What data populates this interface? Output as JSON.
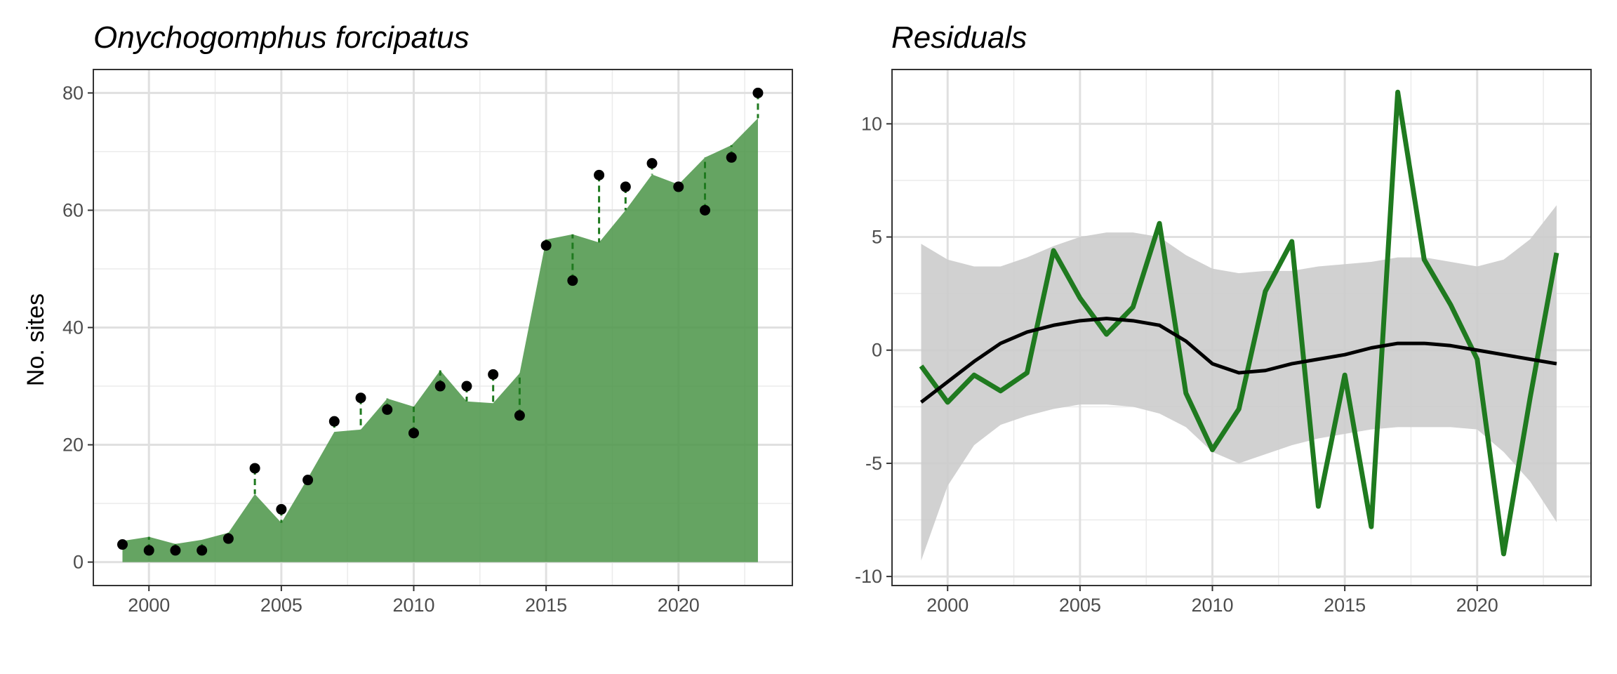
{
  "chart_data": [
    {
      "type": "area",
      "title": "Onychogomphus forcipatus",
      "xlabel": "",
      "ylabel": "No. sites",
      "xlim": [
        1997.9,
        2024.3
      ],
      "ylim": [
        -4,
        84
      ],
      "x_ticks": [
        2000,
        2005,
        2010,
        2015,
        2020
      ],
      "y_ticks": [
        0,
        20,
        40,
        60,
        80
      ],
      "grid": true,
      "colors": {
        "fill": "#4a9446",
        "points": "#000000",
        "segments": "#1f7a1f"
      },
      "x": [
        1999,
        2000,
        2001,
        2002,
        2003,
        2004,
        2005,
        2006,
        2007,
        2008,
        2009,
        2010,
        2011,
        2012,
        2013,
        2014,
        2015,
        2016,
        2017,
        2018,
        2019,
        2020,
        2021,
        2022,
        2023
      ],
      "series": [
        {
          "role": "fitted",
          "values": [
            3.6,
            4.3,
            3.1,
            3.8,
            5.0,
            11.6,
            6.7,
            14.3,
            22.2,
            22.6,
            27.9,
            26.5,
            32.7,
            27.4,
            27.1,
            32.2,
            55.0,
            55.9,
            54.5,
            60.0,
            66.1,
            64.4,
            69.0,
            71.1,
            75.7
          ]
        },
        {
          "role": "observed",
          "values": [
            3,
            2,
            2,
            2,
            4,
            16,
            9,
            14,
            24,
            28,
            26,
            22,
            30,
            30,
            32,
            25,
            54,
            48,
            66,
            64,
            68,
            64,
            60,
            69,
            80
          ]
        }
      ]
    },
    {
      "type": "line",
      "title": "Residuals",
      "xlabel": "",
      "ylabel": "",
      "xlim": [
        1997.9,
        2024.3
      ],
      "ylim": [
        -10.4,
        12.4
      ],
      "x_ticks": [
        2000,
        2005,
        2010,
        2015,
        2020
      ],
      "y_ticks": [
        -10,
        -5,
        0,
        5,
        10
      ],
      "grid": true,
      "colors": {
        "residual": "#1f7a1f",
        "smooth": "#000000",
        "ribbon": "#cccccc"
      },
      "x": [
        1999,
        2000,
        2001,
        2002,
        2003,
        2004,
        2005,
        2006,
        2007,
        2008,
        2009,
        2010,
        2011,
        2012,
        2013,
        2014,
        2015,
        2016,
        2017,
        2018,
        2019,
        2020,
        2021,
        2022,
        2023
      ],
      "series": [
        {
          "role": "residuals",
          "values": [
            -0.7,
            -2.3,
            -1.1,
            -1.8,
            -1.0,
            4.4,
            2.3,
            0.7,
            1.9,
            5.6,
            -1.9,
            -4.4,
            -2.6,
            2.6,
            4.8,
            -6.9,
            -1.1,
            -7.8,
            11.4,
            4.0,
            2.0,
            -0.4,
            -9.0,
            -2.1,
            4.3
          ]
        },
        {
          "role": "smooth",
          "values": [
            -2.3,
            -1.4,
            -0.5,
            0.3,
            0.8,
            1.1,
            1.3,
            1.4,
            1.3,
            1.1,
            0.4,
            -0.6,
            -1.0,
            -0.9,
            -0.6,
            -0.4,
            -0.2,
            0.1,
            0.3,
            0.3,
            0.2,
            0.0,
            -0.2,
            -0.4,
            -0.6
          ]
        },
        {
          "role": "ci_upper",
          "values": [
            4.7,
            4.0,
            3.7,
            3.7,
            4.1,
            4.6,
            5.0,
            5.2,
            5.2,
            5.0,
            4.2,
            3.6,
            3.4,
            3.5,
            3.5,
            3.7,
            3.8,
            3.9,
            4.1,
            4.1,
            3.9,
            3.7,
            4.0,
            4.9,
            6.4
          ]
        },
        {
          "role": "ci_lower",
          "values": [
            -9.3,
            -6.0,
            -4.2,
            -3.3,
            -2.9,
            -2.6,
            -2.4,
            -2.4,
            -2.5,
            -2.8,
            -3.4,
            -4.5,
            -5.0,
            -4.6,
            -4.2,
            -3.9,
            -3.7,
            -3.5,
            -3.4,
            -3.4,
            -3.4,
            -3.5,
            -4.5,
            -5.8,
            -7.6
          ]
        }
      ]
    }
  ]
}
